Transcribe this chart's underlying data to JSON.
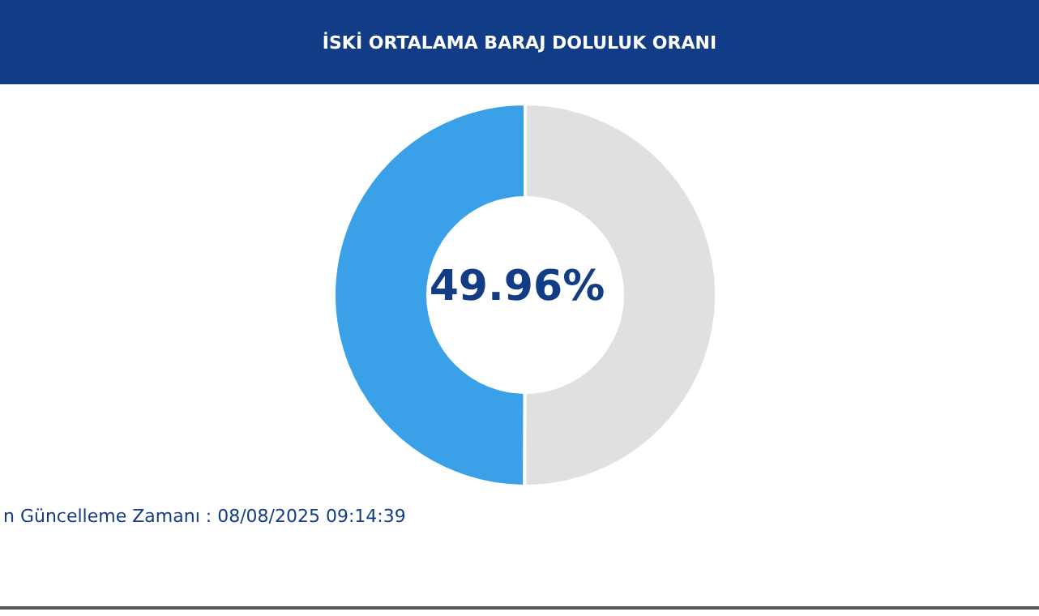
{
  "chart_data": {
    "type": "donut",
    "title": "İSKİ ORTALAMA BARAJ DOLULUK ORANI",
    "categories": [
      null,
      null
    ],
    "values": [
      49.96,
      50.04
    ],
    "colors": [
      "#3aa0e8",
      "#e0e0e0"
    ],
    "value_labels": [
      "49.96%",
      null
    ],
    "legend": false,
    "annotations": [
      "n Güncelleme Zamanı : 08/08/2025 09:14:39"
    ]
  }
}
